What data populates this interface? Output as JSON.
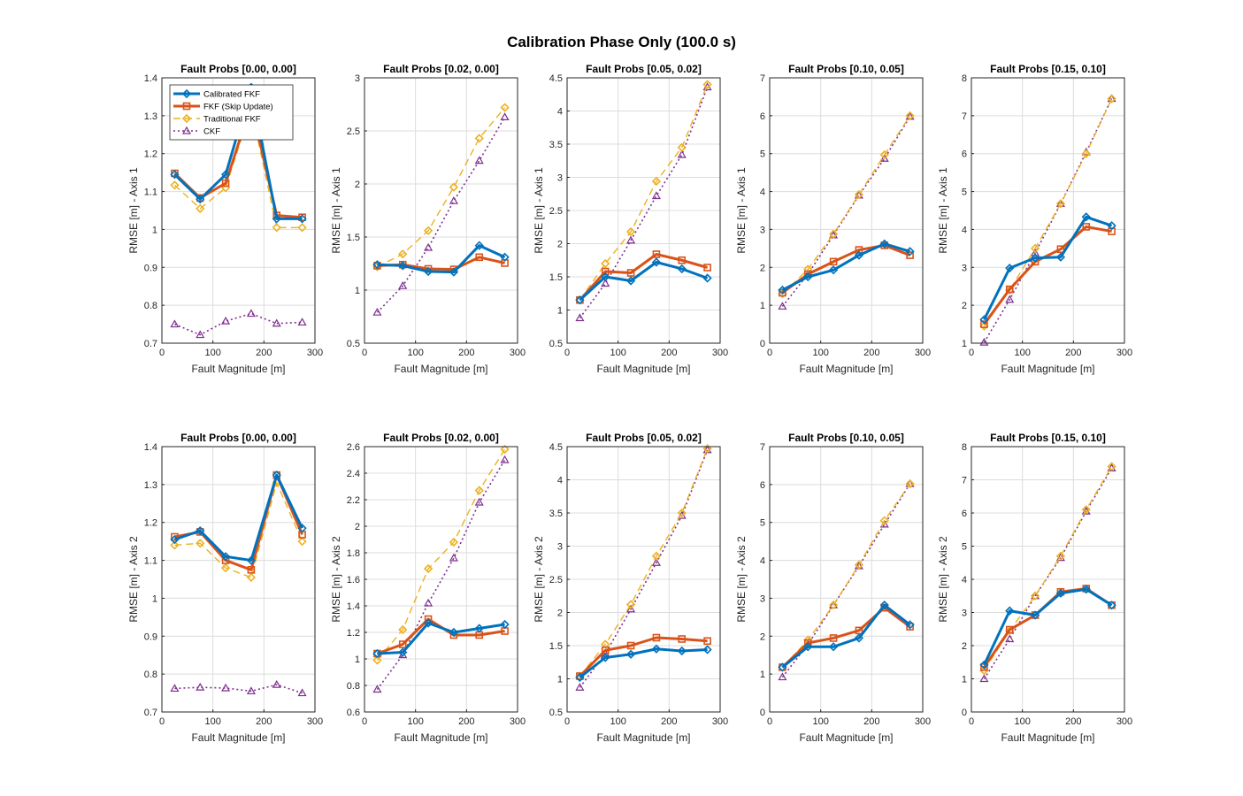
{
  "figure": {
    "title": "Calibration Phase Only (100.0 s)"
  },
  "legend": {
    "entries": [
      {
        "label": "Calibrated FKF",
        "color": "#0072BD",
        "style": "solid",
        "marker": "diamond"
      },
      {
        "label": "FKF (Skip Update)",
        "color": "#D95319",
        "style": "solid",
        "marker": "square"
      },
      {
        "label": "Traditional FKF",
        "color": "#EDB120",
        "style": "dashed",
        "marker": "diamond"
      },
      {
        "label": "CKF",
        "color": "#7E2F8E",
        "style": "dotted",
        "marker": "triangle"
      }
    ],
    "placement": "top-left of first subplot"
  },
  "chart_data": [
    {
      "type": "line",
      "title": "Fault Probs [0.00, 0.00]",
      "xlabel": "Fault Magnitude [m]",
      "ylabel": "RMSE [m] - Axis 1",
      "xlim": [
        0,
        300
      ],
      "ylim": [
        0.7,
        1.4
      ],
      "xticks": [
        "0",
        "100",
        "200",
        "300"
      ],
      "yticks": [
        "0.7",
        "0.8",
        "0.9",
        "1",
        "1.1",
        "1.2",
        "1.3",
        "1.4"
      ],
      "x": [
        25,
        75,
        125,
        175,
        225,
        275
      ],
      "series": [
        {
          "name": "Calibrated FKF",
          "values": [
            1.145,
            1.08,
            1.145,
            1.375,
            1.028,
            1.028
          ]
        },
        {
          "name": "FKF (Skip Update)",
          "values": [
            1.148,
            1.083,
            1.122,
            1.33,
            1.037,
            1.032
          ]
        },
        {
          "name": "Traditional FKF",
          "values": [
            1.117,
            1.055,
            1.11,
            1.32,
            1.005,
            1.005
          ]
        },
        {
          "name": "CKF",
          "values": [
            0.75,
            0.722,
            0.758,
            0.778,
            0.752,
            0.755
          ]
        }
      ]
    },
    {
      "type": "line",
      "title": "Fault Probs [0.02, 0.00]",
      "xlabel": "Fault Magnitude [m]",
      "ylabel": "RMSE [m] - Axis 1",
      "xlim": [
        0,
        300
      ],
      "ylim": [
        0.5,
        3
      ],
      "xticks": [
        "0",
        "100",
        "200",
        "300"
      ],
      "yticks": [
        "0.5",
        "1",
        "1.5",
        "2",
        "2.5",
        "3"
      ],
      "x": [
        25,
        75,
        125,
        175,
        225,
        275
      ],
      "series": [
        {
          "name": "Calibrated FKF",
          "values": [
            1.24,
            1.23,
            1.175,
            1.17,
            1.42,
            1.31
          ]
        },
        {
          "name": "FKF (Skip Update)",
          "values": [
            1.23,
            1.24,
            1.2,
            1.195,
            1.31,
            1.255
          ]
        },
        {
          "name": "Traditional FKF",
          "values": [
            1.22,
            1.34,
            1.56,
            1.97,
            2.43,
            2.72
          ]
        },
        {
          "name": "CKF",
          "values": [
            0.79,
            1.04,
            1.4,
            1.84,
            2.22,
            2.63
          ]
        }
      ]
    },
    {
      "type": "line",
      "title": "Fault Probs [0.05, 0.02]",
      "xlabel": "Fault Magnitude [m]",
      "ylabel": "RMSE [m] - Axis 1",
      "xlim": [
        0,
        300
      ],
      "ylim": [
        0.5,
        4.5
      ],
      "xticks": [
        "0",
        "100",
        "200",
        "300"
      ],
      "yticks": [
        "0.5",
        "1",
        "1.5",
        "2",
        "2.5",
        "3",
        "3.5",
        "4",
        "4.5"
      ],
      "x": [
        25,
        75,
        125,
        175,
        225,
        275
      ],
      "series": [
        {
          "name": "Calibrated FKF",
          "values": [
            1.15,
            1.5,
            1.44,
            1.72,
            1.62,
            1.48
          ]
        },
        {
          "name": "FKF (Skip Update)",
          "values": [
            1.15,
            1.58,
            1.56,
            1.84,
            1.75,
            1.64
          ]
        },
        {
          "name": "Traditional FKF",
          "values": [
            1.15,
            1.7,
            2.18,
            2.94,
            3.45,
            4.4
          ]
        },
        {
          "name": "CKF",
          "values": [
            0.88,
            1.4,
            2.05,
            2.72,
            3.34,
            4.36
          ]
        }
      ]
    },
    {
      "type": "line",
      "title": "Fault Probs [0.10, 0.05]",
      "xlabel": "Fault Magnitude [m]",
      "ylabel": "RMSE [m] - Axis 1",
      "xlim": [
        0,
        300
      ],
      "ylim": [
        0,
        7
      ],
      "xticks": [
        "0",
        "100",
        "200",
        "300"
      ],
      "yticks": [
        "0",
        "1",
        "2",
        "3",
        "4",
        "5",
        "6",
        "7"
      ],
      "x": [
        25,
        75,
        125,
        175,
        225,
        275
      ],
      "series": [
        {
          "name": "Calibrated FKF",
          "values": [
            1.4,
            1.75,
            1.93,
            2.32,
            2.62,
            2.42
          ]
        },
        {
          "name": "FKF (Skip Update)",
          "values": [
            1.33,
            1.82,
            2.15,
            2.46,
            2.58,
            2.32
          ]
        },
        {
          "name": "Traditional FKF",
          "values": [
            1.3,
            1.95,
            2.88,
            3.92,
            4.97,
            6.0
          ]
        },
        {
          "name": "CKF",
          "values": [
            0.97,
            1.82,
            2.85,
            3.9,
            4.87,
            5.98
          ]
        }
      ]
    },
    {
      "type": "line",
      "title": "Fault Probs [0.15, 0.10]",
      "xlabel": "Fault Magnitude [m]",
      "ylabel": "RMSE [m] - Axis 1",
      "xlim": [
        0,
        300
      ],
      "ylim": [
        1,
        8
      ],
      "xticks": [
        "0",
        "100",
        "200",
        "300"
      ],
      "yticks": [
        "1",
        "2",
        "3",
        "4",
        "5",
        "6",
        "7",
        "8"
      ],
      "x": [
        25,
        75,
        125,
        175,
        225,
        275
      ],
      "series": [
        {
          "name": "Calibrated FKF",
          "values": [
            1.62,
            2.98,
            3.25,
            3.27,
            4.33,
            4.1
          ]
        },
        {
          "name": "FKF (Skip Update)",
          "values": [
            1.5,
            2.42,
            3.15,
            3.48,
            4.07,
            3.95
          ]
        },
        {
          "name": "Traditional FKF",
          "values": [
            1.45,
            2.4,
            3.5,
            4.68,
            6.0,
            7.45
          ]
        },
        {
          "name": "CKF",
          "values": [
            1.02,
            2.15,
            3.38,
            4.68,
            6.04,
            7.45
          ]
        }
      ]
    },
    {
      "type": "line",
      "title": "Fault Probs [0.00, 0.00]",
      "xlabel": "Fault Magnitude [m]",
      "ylabel": "RMSE [m] - Axis 2",
      "xlim": [
        0,
        300
      ],
      "ylim": [
        0.7,
        1.4
      ],
      "xticks": [
        "0",
        "100",
        "200",
        "300"
      ],
      "yticks": [
        "0.7",
        "0.8",
        "0.9",
        "1",
        "1.1",
        "1.2",
        "1.3",
        "1.4"
      ],
      "x": [
        25,
        75,
        125,
        175,
        225,
        275
      ],
      "series": [
        {
          "name": "Calibrated FKF",
          "values": [
            1.155,
            1.178,
            1.11,
            1.1,
            1.325,
            1.185
          ]
        },
        {
          "name": "FKF (Skip Update)",
          "values": [
            1.162,
            1.175,
            1.1,
            1.075,
            1.325,
            1.168
          ]
        },
        {
          "name": "Traditional FKF",
          "values": [
            1.14,
            1.145,
            1.08,
            1.055,
            1.305,
            1.15
          ]
        },
        {
          "name": "CKF",
          "values": [
            0.762,
            0.765,
            0.763,
            0.755,
            0.772,
            0.75
          ]
        }
      ]
    },
    {
      "type": "line",
      "title": "Fault Probs [0.02, 0.00]",
      "xlabel": "Fault Magnitude [m]",
      "ylabel": "RMSE [m] - Axis 2",
      "xlim": [
        0,
        300
      ],
      "ylim": [
        0.6,
        2.6
      ],
      "xticks": [
        "0",
        "100",
        "200",
        "300"
      ],
      "yticks": [
        "0.6",
        "0.8",
        "1",
        "1.2",
        "1.4",
        "1.6",
        "1.8",
        "2",
        "2.2",
        "2.4",
        "2.6"
      ],
      "x": [
        25,
        75,
        125,
        175,
        225,
        275
      ],
      "series": [
        {
          "name": "Calibrated FKF",
          "values": [
            1.04,
            1.05,
            1.27,
            1.2,
            1.23,
            1.26
          ]
        },
        {
          "name": "FKF (Skip Update)",
          "values": [
            1.04,
            1.11,
            1.3,
            1.18,
            1.18,
            1.21
          ]
        },
        {
          "name": "Traditional FKF",
          "values": [
            0.99,
            1.22,
            1.68,
            1.88,
            2.27,
            2.58
          ]
        },
        {
          "name": "CKF",
          "values": [
            0.77,
            1.03,
            1.42,
            1.76,
            2.18,
            2.5
          ]
        }
      ]
    },
    {
      "type": "line",
      "title": "Fault Probs [0.05, 0.02]",
      "xlabel": "Fault Magnitude [m]",
      "ylabel": "RMSE [m] - Axis 2",
      "xlim": [
        0,
        300
      ],
      "ylim": [
        0.5,
        4.5
      ],
      "xticks": [
        "0",
        "100",
        "200",
        "300"
      ],
      "yticks": [
        "0.5",
        "1",
        "1.5",
        "2",
        "2.5",
        "3",
        "3.5",
        "4",
        "4.5"
      ],
      "x": [
        25,
        75,
        125,
        175,
        225,
        275
      ],
      "series": [
        {
          "name": "Calibrated FKF",
          "values": [
            1.02,
            1.32,
            1.37,
            1.45,
            1.42,
            1.44
          ]
        },
        {
          "name": "FKF (Skip Update)",
          "values": [
            1.04,
            1.43,
            1.5,
            1.62,
            1.6,
            1.57
          ]
        },
        {
          "name": "Traditional FKF",
          "values": [
            1.04,
            1.52,
            2.12,
            2.85,
            3.5,
            4.47
          ]
        },
        {
          "name": "CKF",
          "values": [
            0.87,
            1.38,
            2.05,
            2.75,
            3.46,
            4.45
          ]
        }
      ]
    },
    {
      "type": "line",
      "title": "Fault Probs [0.10, 0.05]",
      "xlabel": "Fault Magnitude [m]",
      "ylabel": "RMSE [m] - Axis 2",
      "xlim": [
        0,
        300
      ],
      "ylim": [
        0,
        7
      ],
      "xticks": [
        "0",
        "100",
        "200",
        "300"
      ],
      "yticks": [
        "0",
        "1",
        "2",
        "3",
        "4",
        "5",
        "6",
        "7"
      ],
      "x": [
        25,
        75,
        125,
        175,
        225,
        275
      ],
      "series": [
        {
          "name": "Calibrated FKF",
          "values": [
            1.18,
            1.72,
            1.72,
            1.95,
            2.82,
            2.3
          ]
        },
        {
          "name": "FKF (Skip Update)",
          "values": [
            1.18,
            1.82,
            1.95,
            2.15,
            2.75,
            2.25
          ]
        },
        {
          "name": "Traditional FKF",
          "values": [
            1.18,
            1.9,
            2.82,
            3.88,
            5.05,
            6.02
          ]
        },
        {
          "name": "CKF",
          "values": [
            0.92,
            1.78,
            2.82,
            3.85,
            4.95,
            6.02
          ]
        }
      ]
    },
    {
      "type": "line",
      "title": "Fault Probs [0.15, 0.10]",
      "xlabel": "Fault Magnitude [m]",
      "ylabel": "RMSE [m] - Axis 2",
      "xlim": [
        0,
        300
      ],
      "ylim": [
        0,
        8
      ],
      "xticks": [
        "0",
        "100",
        "200",
        "300"
      ],
      "yticks": [
        "0",
        "1",
        "2",
        "3",
        "4",
        "5",
        "6",
        "7",
        "8"
      ],
      "x": [
        25,
        75,
        125,
        175,
        225,
        275
      ],
      "series": [
        {
          "name": "Calibrated FKF",
          "values": [
            1.42,
            3.05,
            2.92,
            3.58,
            3.7,
            3.22
          ]
        },
        {
          "name": "FKF (Skip Update)",
          "values": [
            1.35,
            2.48,
            2.92,
            3.62,
            3.72,
            3.22
          ]
        },
        {
          "name": "Traditional FKF",
          "values": [
            1.25,
            2.45,
            3.5,
            4.7,
            6.1,
            7.4
          ]
        },
        {
          "name": "CKF",
          "values": [
            1.0,
            2.2,
            3.5,
            4.65,
            6.05,
            7.35
          ]
        }
      ]
    }
  ]
}
